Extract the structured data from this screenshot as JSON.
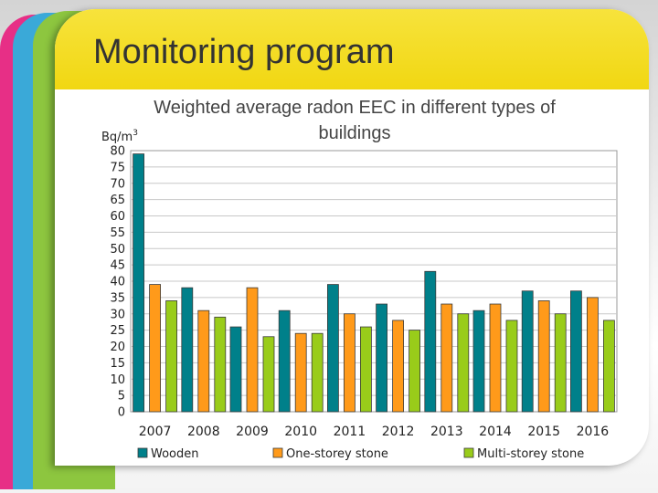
{
  "slide": {
    "title": "Monitoring program"
  },
  "chart_data": {
    "type": "bar",
    "title_lines": [
      "Weighted average radon EEC in different types of",
      "buildings"
    ],
    "ylabel": "Bq/m",
    "ylabel_superscript": "3",
    "xlabel": "",
    "categories": [
      "2007",
      "2008",
      "2009",
      "2010",
      "2011",
      "2012",
      "2013",
      "2014",
      "2015",
      "2016"
    ],
    "series": [
      {
        "name": "Wooden",
        "color": "#00808a",
        "values": [
          79,
          38,
          26,
          31,
          39,
          33,
          43,
          31,
          37,
          37
        ]
      },
      {
        "name": "One-storey stone",
        "color": "#ff9a1a",
        "values": [
          39,
          31,
          38,
          24,
          30,
          28,
          33,
          33,
          34,
          35
        ]
      },
      {
        "name": "Multi-storey stone",
        "color": "#99cc1a",
        "values": [
          34,
          29,
          23,
          24,
          26,
          25,
          30,
          28,
          30,
          28
        ]
      }
    ],
    "ylim": [
      0,
      80
    ],
    "ytick_step": 5,
    "grid": true,
    "legend_position": "bottom"
  }
}
